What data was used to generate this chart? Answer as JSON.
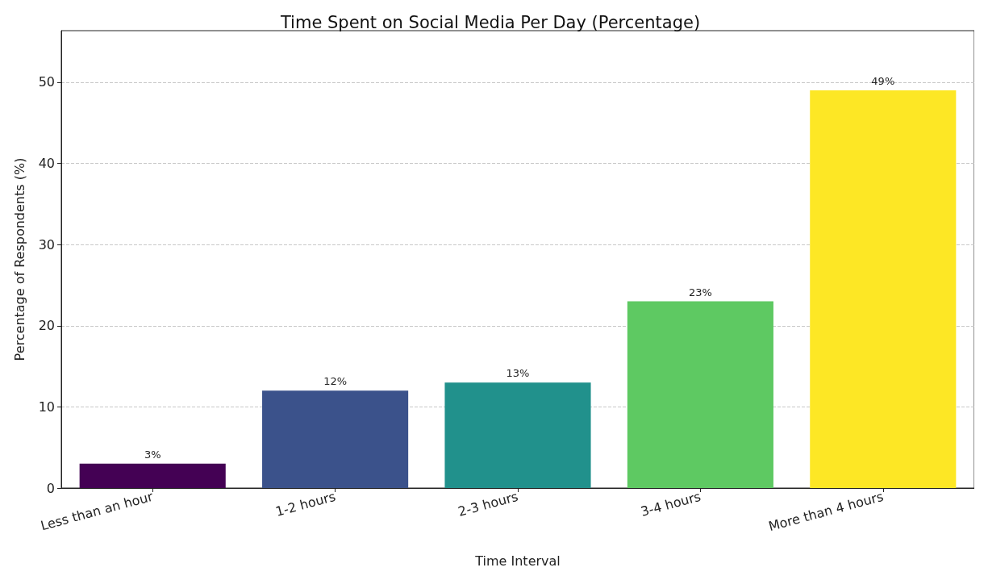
{
  "chart_data": {
    "type": "bar",
    "title": "Time Spent on Social Media Per Day (Percentage)",
    "xlabel": "Time Interval",
    "ylabel": "Percentage of Respondents (%)",
    "categories": [
      "Less than an hour",
      "1-2 hours",
      "2-3 hours",
      "3-4 hours",
      "More than 4 hours"
    ],
    "values": [
      3,
      12,
      13,
      23,
      49
    ],
    "colors": [
      "#440154",
      "#3b528b",
      "#21918c",
      "#5ec962",
      "#fde725"
    ],
    "value_labels": [
      "3%",
      "12%",
      "13%",
      "23%",
      "49%"
    ],
    "ylim": [
      0,
      56.35
    ],
    "yticks": [
      0,
      10,
      20,
      30,
      40,
      50
    ],
    "grid": "y"
  }
}
